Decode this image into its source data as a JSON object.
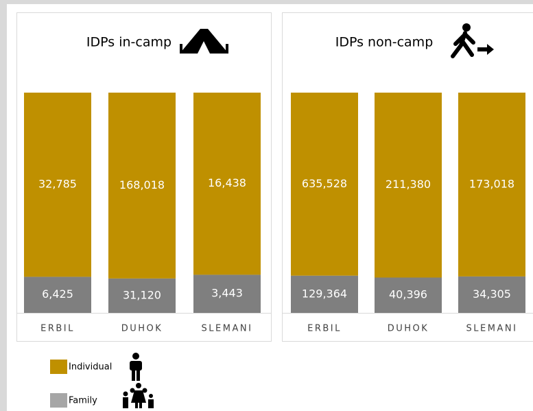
{
  "charts_title": null,
  "chart_data": [
    {
      "type": "bar",
      "stacking": "percent",
      "title": "IDPs in-camp",
      "categories": [
        "ERBIL",
        "DUHOK",
        "SLEMANI"
      ],
      "series": [
        {
          "color": "#7f7f7f",
          "values": [
            6425,
            31120,
            3443
          ],
          "value_labels": [
            "6,425",
            "31,120",
            "3,443"
          ]
        },
        {
          "color": "#bf9000",
          "values": [
            32785,
            168018,
            16438
          ],
          "value_labels": [
            "32,785",
            "168,018",
            "16,438"
          ]
        }
      ]
    },
    {
      "type": "bar",
      "stacking": "percent",
      "title": "IDPs non-camp",
      "categories": [
        "ERBIL",
        "DUHOK",
        "SLEMANI"
      ],
      "series": [
        {
          "color": "#7f7f7f",
          "values": [
            129364,
            40396,
            34305
          ],
          "value_labels": [
            "129,364",
            "40,396",
            "34,305"
          ]
        },
        {
          "color": "#bf9000",
          "values": [
            635528,
            211380,
            173018
          ],
          "value_labels": [
            "635,528",
            "211,380",
            "173,018"
          ]
        }
      ]
    }
  ],
  "legend": [
    {
      "name": "Individual",
      "color": "#bf9000"
    },
    {
      "name": "Family",
      "color": "#a6a6a6"
    }
  ]
}
